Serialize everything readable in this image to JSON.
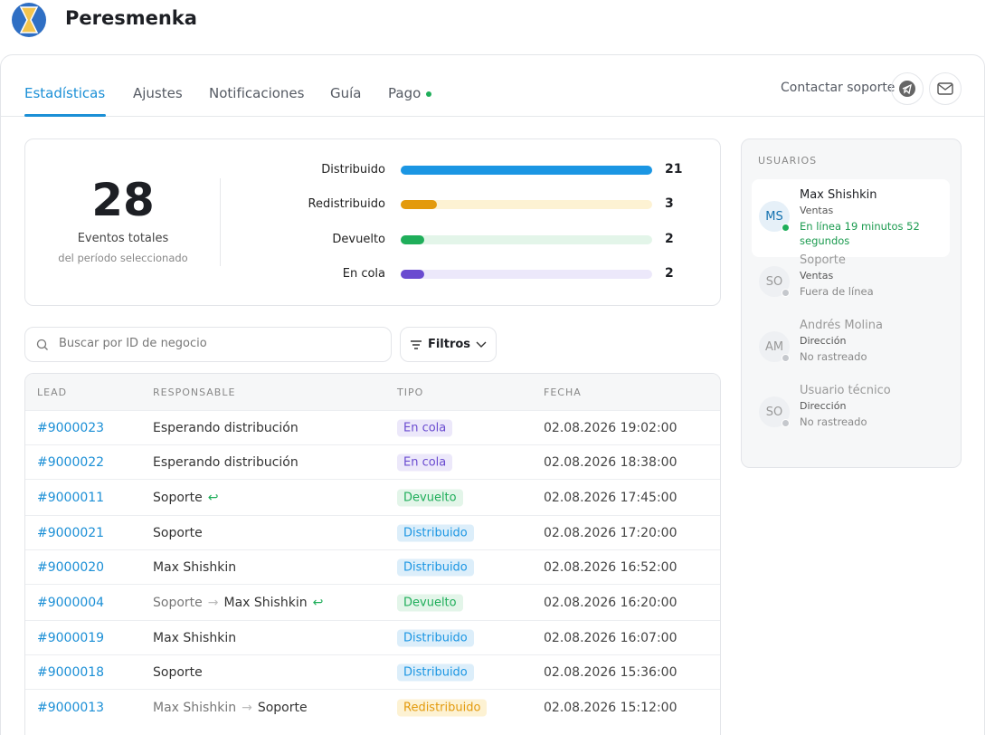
{
  "header": {
    "brand": "Peresmenka"
  },
  "tabs": [
    {
      "label": "Estadísticas",
      "active": true
    },
    {
      "label": "Ajustes"
    },
    {
      "label": "Notificaciones"
    },
    {
      "label": "Guía"
    },
    {
      "label": "Pago",
      "status_dot": true
    }
  ],
  "support": {
    "label": "Contactar soporte"
  },
  "summary": {
    "total": 28,
    "total_label": "Eventos totales",
    "period": "del período seleccionado",
    "breakdown": [
      {
        "label": "Distribuido",
        "value": 21,
        "color": "#1b96e3",
        "track": "#dceefa"
      },
      {
        "label": "Redistribuido",
        "value": 3,
        "color": "#e39a0c",
        "track": "#fdf2d3"
      },
      {
        "label": "Devuelto",
        "value": 2,
        "color": "#1fae5a",
        "track": "#e3f5e9"
      },
      {
        "label": "En cola",
        "value": 2,
        "color": "#6a4bd0",
        "track": "#ece8fa"
      }
    ]
  },
  "search": {
    "placeholder": "Buscar por ID de negocio"
  },
  "filters": {
    "label": "Filtros"
  },
  "table": {
    "columns": [
      "LEAD",
      "RESPONSABLE",
      "TIPO",
      "FECHA"
    ],
    "rows": [
      {
        "lead": "#9000023",
        "responsible": [
          "Esperando distribución"
        ],
        "type": "En cola",
        "date": "02.08.2026 19:02:00"
      },
      {
        "lead": "#9000022",
        "responsible": [
          "Esperando distribución"
        ],
        "type": "En cola",
        "date": "02.08.2026 18:38:00"
      },
      {
        "lead": "#9000011",
        "responsible": [
          "Soporte"
        ],
        "returned": true,
        "type": "Devuelto",
        "date": "02.08.2026 17:45:00"
      },
      {
        "lead": "#9000021",
        "responsible": [
          "Soporte"
        ],
        "type": "Distribuido",
        "date": "02.08.2026 17:20:00"
      },
      {
        "lead": "#9000020",
        "responsible": [
          "Max Shishkin"
        ],
        "type": "Distribuido",
        "date": "02.08.2026 16:52:00"
      },
      {
        "lead": "#9000004",
        "responsible": [
          "Soporte",
          "Max Shishkin"
        ],
        "returned": true,
        "type": "Devuelto",
        "date": "02.08.2026 16:20:00"
      },
      {
        "lead": "#9000019",
        "responsible": [
          "Max Shishkin"
        ],
        "type": "Distribuido",
        "date": "02.08.2026 16:07:00"
      },
      {
        "lead": "#9000018",
        "responsible": [
          "Soporte"
        ],
        "type": "Distribuido",
        "date": "02.08.2026 15:36:00"
      },
      {
        "lead": "#9000013",
        "responsible": [
          "Max Shishkin",
          "Soporte"
        ],
        "type": "Redistribuido",
        "date": "02.08.2026 15:12:00"
      }
    ]
  },
  "users": {
    "title": "USUARIOS",
    "list": [
      {
        "initials": "MS",
        "name": "Max Shishkin",
        "role": "Ventas",
        "status": "En línea 19 minutos 52 segundos",
        "online": true
      },
      {
        "initials": "SO",
        "name": "Soporte",
        "role": "Ventas",
        "status": "Fuera de línea"
      },
      {
        "initials": "AM",
        "name": "Andrés Molina",
        "role": "Dirección",
        "status": "No rastreado"
      },
      {
        "initials": "SO",
        "name": "Usuario técnico",
        "role": "Dirección",
        "status": "No rastreado"
      }
    ]
  }
}
